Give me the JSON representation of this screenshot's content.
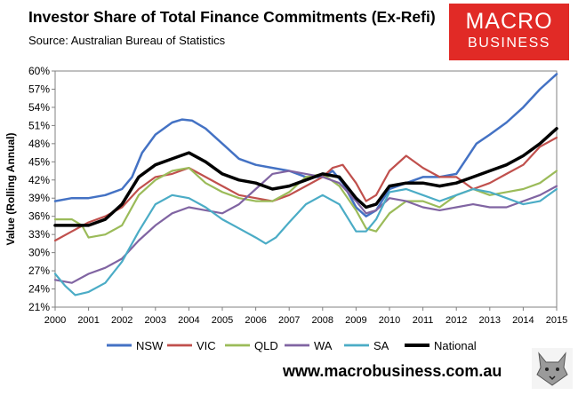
{
  "header": {
    "title": "Investor Share of Total Finance Commitments (Ex-Refi)",
    "subtitle": "Source: Australian Bureau of Statistics"
  },
  "logo": {
    "line1": "MACRO",
    "line2": "BUSINESS"
  },
  "footer": {
    "url": "www.macrobusiness.com.au"
  },
  "chart_data": {
    "type": "line",
    "title": "Investor Share of Total Finance Commitments (Ex-Refi)",
    "xlabel": "",
    "ylabel": "Value (Rolling Annual)",
    "xlim": [
      2000,
      2015
    ],
    "ylim": [
      21,
      60
    ],
    "x_ticks": [
      2000,
      2001,
      2002,
      2003,
      2004,
      2005,
      2006,
      2007,
      2008,
      2009,
      2010,
      2011,
      2012,
      2013,
      2014,
      2015
    ],
    "y_ticks": [
      21,
      24,
      27,
      30,
      33,
      36,
      39,
      42,
      45,
      48,
      51,
      54,
      57,
      60
    ],
    "y_tick_suffix": "%",
    "legend_position": "bottom",
    "grid": false,
    "series": [
      {
        "name": "NSW",
        "color": "#4472c4",
        "width": 2.5,
        "points": [
          [
            2000,
            38.5
          ],
          [
            2000.5,
            39.0
          ],
          [
            2001,
            39.0
          ],
          [
            2001.5,
            39.5
          ],
          [
            2002,
            40.5
          ],
          [
            2002.3,
            42.5
          ],
          [
            2002.6,
            46.5
          ],
          [
            2003,
            49.5
          ],
          [
            2003.5,
            51.5
          ],
          [
            2003.8,
            52.0
          ],
          [
            2004.1,
            51.8
          ],
          [
            2004.5,
            50.5
          ],
          [
            2005,
            48.0
          ],
          [
            2005.5,
            45.5
          ],
          [
            2006,
            44.5
          ],
          [
            2006.5,
            44.0
          ],
          [
            2007,
            43.5
          ],
          [
            2007.5,
            42.5
          ],
          [
            2008,
            42.5
          ],
          [
            2008.3,
            43.5
          ],
          [
            2008.6,
            41.5
          ],
          [
            2009,
            37.5
          ],
          [
            2009.3,
            36.0
          ],
          [
            2009.6,
            37.0
          ],
          [
            2010,
            40.5
          ],
          [
            2010.5,
            41.5
          ],
          [
            2011,
            42.5
          ],
          [
            2011.5,
            42.5
          ],
          [
            2012,
            43.0
          ],
          [
            2012.3,
            45.5
          ],
          [
            2012.6,
            48.0
          ],
          [
            2013,
            49.5
          ],
          [
            2013.5,
            51.5
          ],
          [
            2014,
            54.0
          ],
          [
            2014.5,
            57.0
          ],
          [
            2015,
            59.5
          ]
        ]
      },
      {
        "name": "VIC",
        "color": "#c0504d",
        "width": 2.2,
        "points": [
          [
            2000,
            32.0
          ],
          [
            2000.5,
            33.5
          ],
          [
            2001,
            35.0
          ],
          [
            2001.5,
            36.0
          ],
          [
            2002,
            37.5
          ],
          [
            2002.5,
            40.5
          ],
          [
            2003,
            42.5
          ],
          [
            2003.5,
            43.0
          ],
          [
            2004,
            44.0
          ],
          [
            2004.5,
            42.5
          ],
          [
            2005,
            41.0
          ],
          [
            2005.5,
            39.5
          ],
          [
            2006,
            39.0
          ],
          [
            2006.5,
            38.5
          ],
          [
            2007,
            39.5
          ],
          [
            2007.5,
            41.0
          ],
          [
            2008,
            42.5
          ],
          [
            2008.3,
            44.0
          ],
          [
            2008.6,
            44.5
          ],
          [
            2009,
            41.5
          ],
          [
            2009.3,
            38.5
          ],
          [
            2009.6,
            39.5
          ],
          [
            2010,
            43.5
          ],
          [
            2010.5,
            46.0
          ],
          [
            2011,
            44.0
          ],
          [
            2011.5,
            42.5
          ],
          [
            2012,
            42.5
          ],
          [
            2012.5,
            40.5
          ],
          [
            2013,
            41.5
          ],
          [
            2013.5,
            43.0
          ],
          [
            2014,
            44.5
          ],
          [
            2014.5,
            47.5
          ],
          [
            2015,
            49.0
          ]
        ]
      },
      {
        "name": "QLD",
        "color": "#9bbb59",
        "width": 2.2,
        "points": [
          [
            2000,
            35.5
          ],
          [
            2000.5,
            35.5
          ],
          [
            2000.8,
            34.5
          ],
          [
            2001,
            32.5
          ],
          [
            2001.5,
            33.0
          ],
          [
            2002,
            34.5
          ],
          [
            2002.5,
            39.5
          ],
          [
            2003,
            42.0
          ],
          [
            2003.5,
            43.5
          ],
          [
            2004,
            44.0
          ],
          [
            2004.5,
            41.5
          ],
          [
            2005,
            40.0
          ],
          [
            2005.5,
            39.0
          ],
          [
            2006,
            38.5
          ],
          [
            2006.5,
            38.5
          ],
          [
            2007,
            40.0
          ],
          [
            2007.5,
            42.5
          ],
          [
            2008,
            43.0
          ],
          [
            2008.5,
            41.0
          ],
          [
            2009,
            37.0
          ],
          [
            2009.3,
            34.0
          ],
          [
            2009.6,
            33.5
          ],
          [
            2010,
            36.5
          ],
          [
            2010.5,
            38.5
          ],
          [
            2011,
            38.5
          ],
          [
            2011.5,
            37.5
          ],
          [
            2012,
            39.5
          ],
          [
            2012.5,
            40.5
          ],
          [
            2013,
            39.5
          ],
          [
            2013.5,
            40.0
          ],
          [
            2014,
            40.5
          ],
          [
            2014.5,
            41.5
          ],
          [
            2015,
            43.5
          ]
        ]
      },
      {
        "name": "WA",
        "color": "#8064a2",
        "width": 2.2,
        "points": [
          [
            2000,
            25.5
          ],
          [
            2000.5,
            25.0
          ],
          [
            2001,
            26.5
          ],
          [
            2001.5,
            27.5
          ],
          [
            2002,
            29.0
          ],
          [
            2002.5,
            32.0
          ],
          [
            2003,
            34.5
          ],
          [
            2003.5,
            36.5
          ],
          [
            2004,
            37.5
          ],
          [
            2004.5,
            37.0
          ],
          [
            2005,
            36.5
          ],
          [
            2005.5,
            38.0
          ],
          [
            2006,
            40.5
          ],
          [
            2006.5,
            43.0
          ],
          [
            2007,
            43.5
          ],
          [
            2007.5,
            43.0
          ],
          [
            2008,
            42.5
          ],
          [
            2008.5,
            41.5
          ],
          [
            2009,
            38.5
          ],
          [
            2009.3,
            36.5
          ],
          [
            2009.6,
            37.0
          ],
          [
            2010,
            39.0
          ],
          [
            2010.5,
            38.5
          ],
          [
            2011,
            37.5
          ],
          [
            2011.5,
            37.0
          ],
          [
            2012,
            37.5
          ],
          [
            2012.5,
            38.0
          ],
          [
            2013,
            37.5
          ],
          [
            2013.5,
            37.5
          ],
          [
            2014,
            38.5
          ],
          [
            2014.5,
            39.5
          ],
          [
            2015,
            41.0
          ]
        ]
      },
      {
        "name": "SA",
        "color": "#4bacc6",
        "width": 2.2,
        "points": [
          [
            2000,
            26.5
          ],
          [
            2000.3,
            24.5
          ],
          [
            2000.6,
            23.0
          ],
          [
            2001,
            23.5
          ],
          [
            2001.5,
            25.0
          ],
          [
            2002,
            28.5
          ],
          [
            2002.5,
            33.5
          ],
          [
            2003,
            38.0
          ],
          [
            2003.5,
            39.5
          ],
          [
            2004,
            39.0
          ],
          [
            2004.5,
            37.5
          ],
          [
            2005,
            35.5
          ],
          [
            2005.5,
            34.0
          ],
          [
            2006,
            32.5
          ],
          [
            2006.3,
            31.5
          ],
          [
            2006.6,
            32.5
          ],
          [
            2007,
            35.0
          ],
          [
            2007.5,
            38.0
          ],
          [
            2008,
            39.5
          ],
          [
            2008.5,
            38.0
          ],
          [
            2009,
            33.5
          ],
          [
            2009.3,
            33.5
          ],
          [
            2009.6,
            35.5
          ],
          [
            2010,
            40.0
          ],
          [
            2010.5,
            40.5
          ],
          [
            2011,
            39.5
          ],
          [
            2011.5,
            38.5
          ],
          [
            2012,
            39.5
          ],
          [
            2012.5,
            40.5
          ],
          [
            2013,
            40.0
          ],
          [
            2013.5,
            39.0
          ],
          [
            2014,
            38.0
          ],
          [
            2014.5,
            38.5
          ],
          [
            2015,
            40.5
          ]
        ]
      },
      {
        "name": "National",
        "color": "#000000",
        "width": 3.5,
        "points": [
          [
            2000,
            34.5
          ],
          [
            2000.5,
            34.5
          ],
          [
            2001,
            34.5
          ],
          [
            2001.5,
            35.5
          ],
          [
            2002,
            38.0
          ],
          [
            2002.5,
            42.5
          ],
          [
            2003,
            44.5
          ],
          [
            2003.5,
            45.5
          ],
          [
            2004,
            46.5
          ],
          [
            2004.5,
            45.0
          ],
          [
            2005,
            43.0
          ],
          [
            2005.5,
            42.0
          ],
          [
            2006,
            41.5
          ],
          [
            2006.5,
            40.5
          ],
          [
            2007,
            41.0
          ],
          [
            2007.5,
            42.0
          ],
          [
            2008,
            43.0
          ],
          [
            2008.5,
            42.5
          ],
          [
            2009,
            39.0
          ],
          [
            2009.3,
            37.5
          ],
          [
            2009.6,
            38.0
          ],
          [
            2010,
            41.0
          ],
          [
            2010.5,
            41.5
          ],
          [
            2011,
            41.5
          ],
          [
            2011.5,
            41.0
          ],
          [
            2012,
            41.5
          ],
          [
            2012.5,
            42.5
          ],
          [
            2013,
            43.5
          ],
          [
            2013.5,
            44.5
          ],
          [
            2014,
            46.0
          ],
          [
            2014.5,
            48.0
          ],
          [
            2015,
            50.5
          ]
        ]
      }
    ]
  }
}
